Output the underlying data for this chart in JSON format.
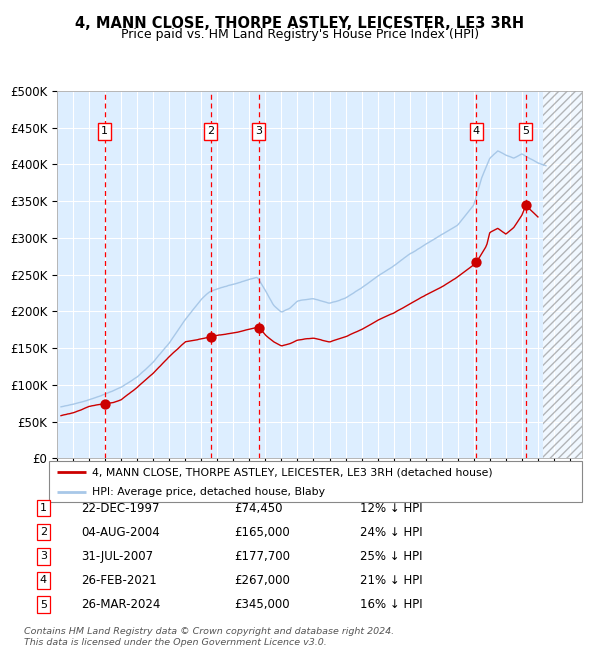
{
  "title": "4, MANN CLOSE, THORPE ASTLEY, LEICESTER, LE3 3RH",
  "subtitle": "Price paid vs. HM Land Registry's House Price Index (HPI)",
  "ylim": [
    0,
    500000
  ],
  "yticks": [
    0,
    50000,
    100000,
    150000,
    200000,
    250000,
    300000,
    350000,
    400000,
    450000,
    500000
  ],
  "ytick_labels": [
    "£0",
    "£50K",
    "£100K",
    "£150K",
    "£200K",
    "£250K",
    "£300K",
    "£350K",
    "£400K",
    "£450K",
    "£500K"
  ],
  "xlim_start": 1995.25,
  "xlim_end": 2027.75,
  "hpi_color": "#a8c8e8",
  "price_color": "#cc0000",
  "bg_color": "#ddeeff",
  "grid_color": "#ffffff",
  "sale_dates_x": [
    1997.98,
    2004.59,
    2007.58,
    2021.16,
    2024.24
  ],
  "sale_prices_y": [
    74450,
    165000,
    177700,
    267000,
    345000
  ],
  "sale_labels": [
    "1",
    "2",
    "3",
    "4",
    "5"
  ],
  "legend_label_price": "4, MANN CLOSE, THORPE ASTLEY, LEICESTER, LE3 3RH (detached house)",
  "legend_label_hpi": "HPI: Average price, detached house, Blaby",
  "table_rows": [
    [
      "1",
      "22-DEC-1997",
      "£74,450",
      "12% ↓ HPI"
    ],
    [
      "2",
      "04-AUG-2004",
      "£165,000",
      "24% ↓ HPI"
    ],
    [
      "3",
      "31-JUL-2007",
      "£177,700",
      "25% ↓ HPI"
    ],
    [
      "4",
      "26-FEB-2021",
      "£267,000",
      "21% ↓ HPI"
    ],
    [
      "5",
      "26-MAR-2024",
      "£345,000",
      "16% ↓ HPI"
    ]
  ],
  "footer": "Contains HM Land Registry data © Crown copyright and database right 2024.\nThis data is licensed under the Open Government Licence v3.0.",
  "future_start": 2025.3,
  "hpi_base_points_x": [
    1995.25,
    1996,
    1997,
    1998,
    1999,
    2000,
    2001,
    2002,
    2003,
    2004,
    2004.5,
    2005,
    2006,
    2007,
    2007.5,
    2008,
    2008.5,
    2009,
    2009.5,
    2010,
    2011,
    2012,
    2013,
    2014,
    2015,
    2016,
    2017,
    2018,
    2019,
    2020,
    2021,
    2021.5,
    2022,
    2022.5,
    2023,
    2023.5,
    2024,
    2024.5,
    2025,
    2025.5
  ],
  "hpi_base_points_y": [
    70000,
    73000,
    80000,
    88000,
    98000,
    112000,
    132000,
    158000,
    190000,
    218000,
    228000,
    232000,
    238000,
    245000,
    248000,
    230000,
    210000,
    200000,
    205000,
    215000,
    218000,
    212000,
    218000,
    232000,
    248000,
    262000,
    278000,
    292000,
    305000,
    318000,
    345000,
    382000,
    408000,
    418000,
    412000,
    408000,
    414000,
    408000,
    402000,
    398000
  ],
  "price_base_points_x": [
    1995.25,
    1996,
    1997,
    1997.98,
    1998.5,
    1999,
    2000,
    2001,
    2002,
    2003,
    2004,
    2004.59,
    2005,
    2006,
    2007,
    2007.58,
    2008,
    2008.5,
    2009,
    2009.5,
    2010,
    2011,
    2012,
    2013,
    2014,
    2015,
    2016,
    2017,
    2018,
    2019,
    2020,
    2021,
    2021.16,
    2021.8,
    2022,
    2022.5,
    2023,
    2023.5,
    2024,
    2024.24,
    2024.6,
    2025
  ],
  "price_base_points_y": [
    58000,
    62000,
    70000,
    74450,
    76000,
    80000,
    96000,
    115000,
    138000,
    158000,
    162000,
    165000,
    167000,
    170000,
    175000,
    177700,
    167000,
    158000,
    152000,
    155000,
    160000,
    163000,
    158000,
    165000,
    175000,
    188000,
    198000,
    210000,
    222000,
    234000,
    248000,
    264000,
    267000,
    290000,
    308000,
    314000,
    306000,
    315000,
    332000,
    345000,
    338000,
    330000
  ]
}
